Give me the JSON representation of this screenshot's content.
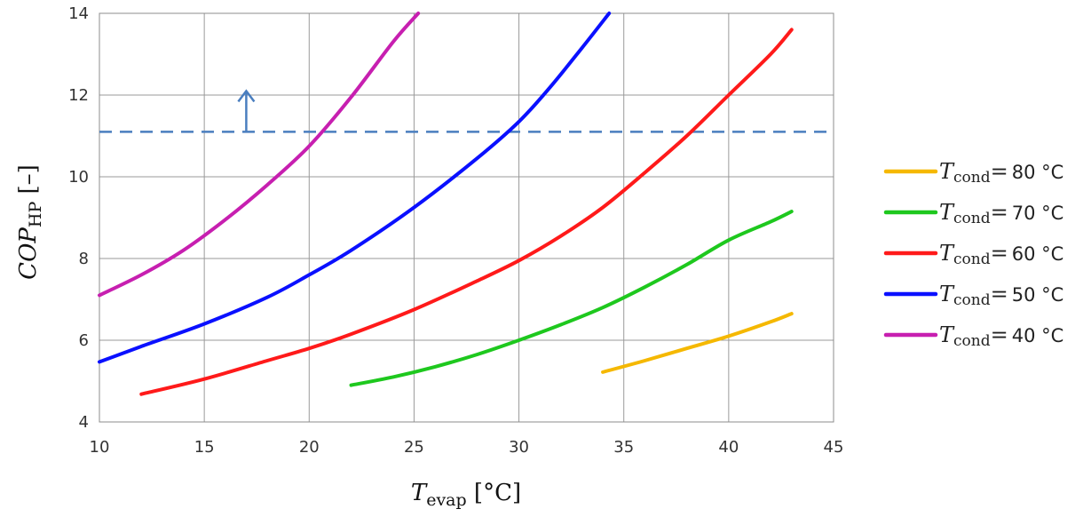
{
  "chart_data": {
    "type": "line",
    "xlabel": {
      "main": "T",
      "sub": "evap",
      "unit": " [°C]"
    },
    "ylabel": {
      "main": "COP",
      "sub": "HP",
      "unit": " [–]"
    },
    "xlim": [
      10,
      45
    ],
    "ylim": [
      4,
      14
    ],
    "xticks": [
      "10",
      "15",
      "20",
      "25",
      "30",
      "35",
      "40",
      "45"
    ],
    "yticks": [
      "4",
      "6",
      "8",
      "10",
      "12",
      "14"
    ],
    "grid": true,
    "legend_position": "right",
    "threshold": {
      "y": 11.1,
      "style": "dashed",
      "color": "#4a7ebf",
      "arrow_x": 17,
      "arrow_from_y": 11.1,
      "arrow_to_y": 12.1
    },
    "series": [
      {
        "name": "80 °C",
        "symbol": "T",
        "subscript": "cond",
        "eq": "=",
        "color": "#f5b800",
        "x": [
          34,
          36,
          38,
          40,
          42,
          43
        ],
        "y": [
          5.22,
          5.5,
          5.8,
          6.1,
          6.45,
          6.65
        ]
      },
      {
        "name": "70 °C",
        "symbol": "T",
        "subscript": "cond",
        "eq": "=",
        "color": "#1ec81e",
        "x": [
          22,
          24,
          26,
          28,
          30,
          32,
          34,
          36,
          38,
          40,
          42,
          43
        ],
        "y": [
          4.9,
          5.1,
          5.35,
          5.65,
          6.0,
          6.38,
          6.8,
          7.3,
          7.85,
          8.45,
          8.9,
          9.15
        ]
      },
      {
        "name": "60 °C",
        "symbol": "T",
        "subscript": "cond",
        "eq": "=",
        "color": "#ff1a1a",
        "x": [
          12,
          15,
          18,
          20,
          22,
          25,
          28,
          30,
          32,
          34,
          36,
          38,
          40,
          42,
          43
        ],
        "y": [
          4.68,
          5.05,
          5.5,
          5.8,
          6.15,
          6.75,
          7.45,
          7.95,
          8.55,
          9.25,
          10.1,
          11.0,
          12.0,
          13.0,
          13.6
        ]
      },
      {
        "name": "50 °C",
        "symbol": "T",
        "subscript": "cond",
        "eq": "=",
        "color": "#0a10ff",
        "x": [
          10,
          12,
          15,
          18,
          20,
          22,
          25,
          28,
          30,
          31.5,
          33,
          34.3
        ],
        "y": [
          5.47,
          5.85,
          6.4,
          7.05,
          7.6,
          8.2,
          9.25,
          10.45,
          11.35,
          12.2,
          13.15,
          14.0
        ]
      },
      {
        "name": "40 °C",
        "symbol": "T",
        "subscript": "cond",
        "eq": "=",
        "color": "#c71fb0",
        "x": [
          10,
          12,
          14,
          16,
          18,
          20,
          22,
          24,
          25.2
        ],
        "y": [
          7.1,
          7.6,
          8.2,
          8.95,
          9.8,
          10.75,
          11.95,
          13.3,
          14.0
        ]
      }
    ]
  }
}
